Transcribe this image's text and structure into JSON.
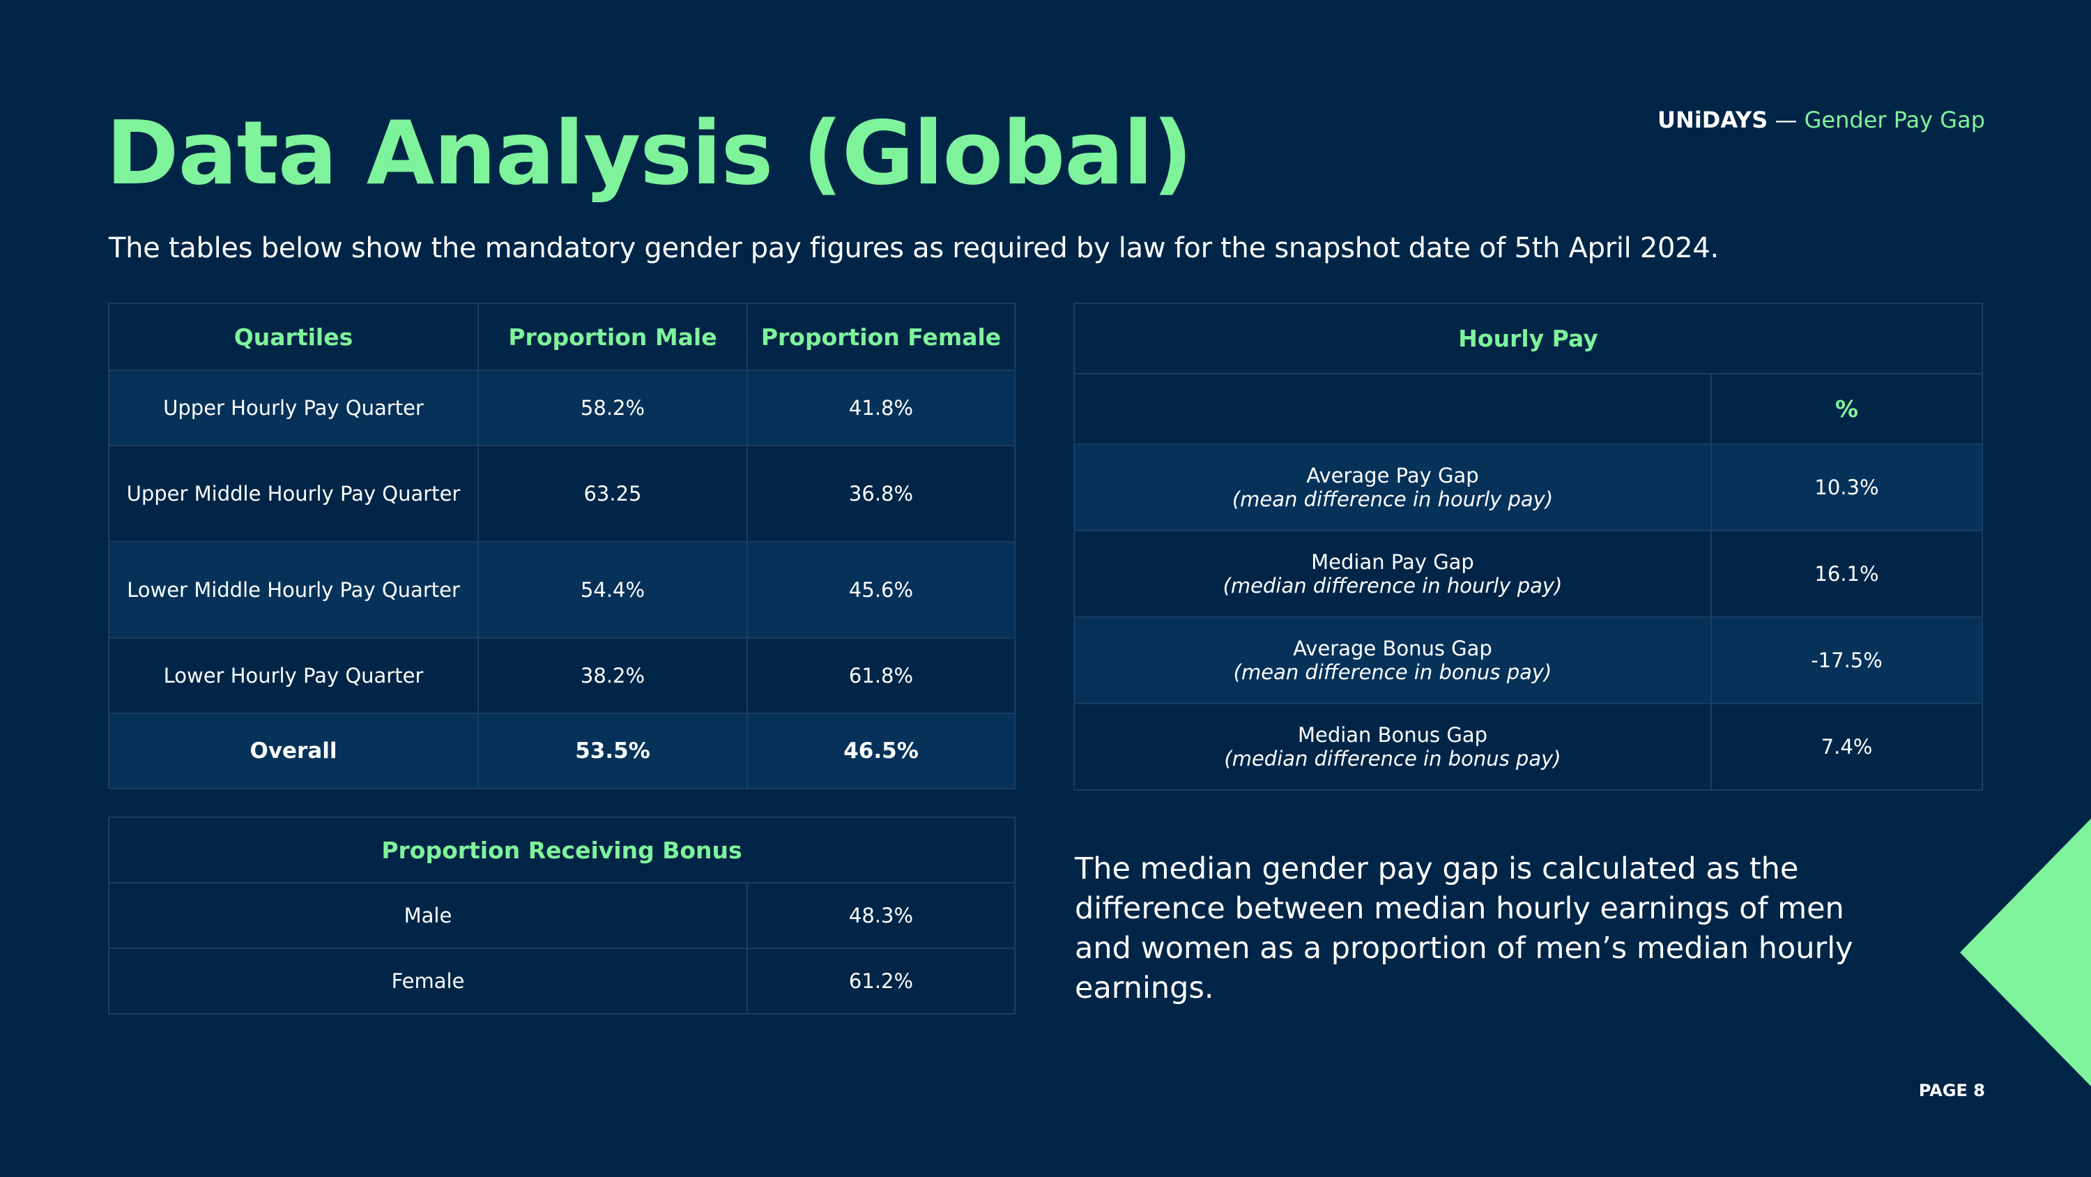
{
  "header": {
    "title": "Data Analysis (Global)",
    "brand_name": "UNiDAYS",
    "brand_separator": " — ",
    "brand_subtitle": "Gender Pay Gap"
  },
  "subtitle": "The tables below show the mandatory gender pay figures as required by law for the snapshot date of 5th April 2024.",
  "quartiles_table": {
    "headers": [
      "Quartiles",
      "Proportion Male",
      "Proportion Female"
    ],
    "rows": [
      {
        "label": "Upper Hourly Pay Quarter",
        "male": "58.2%",
        "female": "41.8%"
      },
      {
        "label": "Upper Middle Hourly Pay Quarter",
        "male": "63.25",
        "female": "36.8%"
      },
      {
        "label": "Lower Middle Hourly Pay Quarter",
        "male": "54.4%",
        "female": "45.6%"
      },
      {
        "label": "Lower Hourly Pay Quarter",
        "male": "38.2%",
        "female": "61.8%"
      },
      {
        "label": "Overall",
        "male": "53.5%",
        "female": "46.5%"
      }
    ]
  },
  "bonus_table": {
    "header": "Proportion Receiving Bonus",
    "rows": [
      {
        "label": "Male",
        "value": "48.3%"
      },
      {
        "label": "Female",
        "value": "61.2%"
      }
    ]
  },
  "hourly_table": {
    "header": "Hourly Pay",
    "value_header": "%",
    "rows": [
      {
        "label": "Average Pay Gap",
        "detail": "(mean difference in hourly pay)",
        "value": "10.3%"
      },
      {
        "label": "Median Pay Gap",
        "detail": "(median difference in hourly pay)",
        "value": "16.1%"
      },
      {
        "label": "Average Bonus Gap",
        "detail": "(mean difference in bonus pay)",
        "value": "-17.5%"
      },
      {
        "label": "Median Bonus Gap",
        "detail": "(median difference in bonus pay)",
        "value": "7.4%"
      }
    ]
  },
  "note": "The median gender pay gap is calculated as the difference between median hourly earnings of men and women as a proportion of men’s median hourly earnings.",
  "footer": {
    "page": "PAGE 8"
  },
  "colors": {
    "background": "#002547",
    "accent": "#7ff39c",
    "row_light": "#063259",
    "border": "#1b3d62"
  }
}
